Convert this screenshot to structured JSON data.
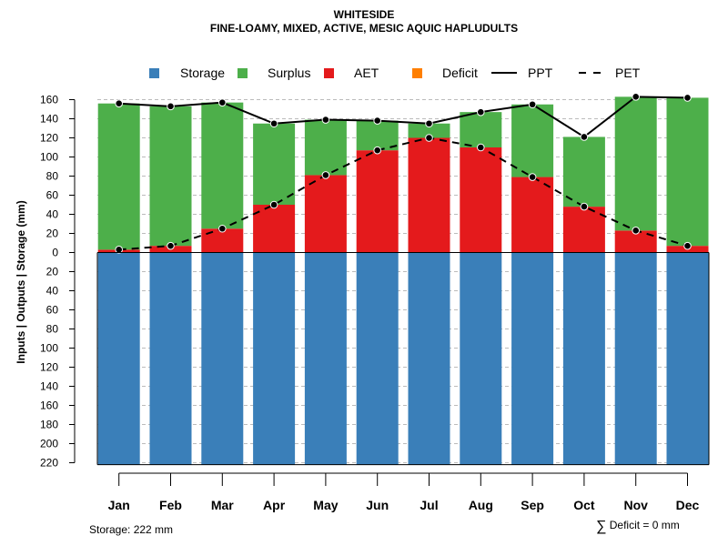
{
  "chart_data": {
    "type": "bar",
    "title": "WHITESIDE",
    "subtitle": "FINE-LOAMY, MIXED, ACTIVE, MESIC AQUIC HAPLUDULTS",
    "ylabel": "Inputs | Outputs | Storage    (mm)",
    "xlabel": "",
    "categories": [
      "Jan",
      "Feb",
      "Mar",
      "Apr",
      "May",
      "Jun",
      "Jul",
      "Aug",
      "Sep",
      "Oct",
      "Nov",
      "Dec"
    ],
    "y_ticks_upper": [
      0,
      20,
      40,
      60,
      80,
      100,
      120,
      140,
      160
    ],
    "y_ticks_lower": [
      20,
      40,
      60,
      80,
      100,
      120,
      140,
      160,
      180,
      200,
      220
    ],
    "ylim": [
      -225,
      165
    ],
    "legend": [
      {
        "label": "Storage",
        "color": "#3A7FB9",
        "kind": "box"
      },
      {
        "label": "Surplus",
        "color": "#4DAF4A",
        "kind": "box"
      },
      {
        "label": "AET",
        "color": "#E41A1C",
        "kind": "box"
      },
      {
        "label": "Deficit",
        "color": "#FF7F00",
        "kind": "box"
      },
      {
        "label": "PPT",
        "color": "#000000",
        "kind": "solid"
      },
      {
        "label": "PET",
        "color": "#000000",
        "kind": "dashed"
      }
    ],
    "series": [
      {
        "name": "Storage",
        "values": [
          222,
          222,
          222,
          222,
          222,
          222,
          222,
          222,
          222,
          222,
          222,
          222
        ]
      },
      {
        "name": "AET",
        "values": [
          3,
          7,
          25,
          50,
          81,
          107,
          120,
          110,
          79,
          48,
          23,
          7
        ]
      },
      {
        "name": "Surplus",
        "values": [
          153,
          146,
          132,
          85,
          58,
          31,
          15,
          37,
          76,
          73,
          140,
          155
        ]
      },
      {
        "name": "Deficit",
        "values": [
          0,
          0,
          0,
          0,
          0,
          0,
          0,
          0,
          0,
          0,
          0,
          0
        ]
      },
      {
        "name": "PPT",
        "values": [
          156,
          153,
          157,
          135,
          139,
          138,
          135,
          147,
          155,
          121,
          163,
          162
        ]
      },
      {
        "name": "PET",
        "values": [
          3,
          7,
          25,
          50,
          81,
          107,
          120,
          110,
          79,
          48,
          23,
          7
        ]
      }
    ],
    "colors": {
      "storage": "#3A7FB9",
      "surplus": "#4DAF4A",
      "aet": "#E41A1C",
      "deficit": "#FF7F00",
      "grid": "#BBBBBB",
      "line": "#000000"
    }
  },
  "notes": {
    "storage": "Storage: 222 mm",
    "deficit_symbol": "∑",
    "deficit": "Deficit = 0 mm"
  }
}
